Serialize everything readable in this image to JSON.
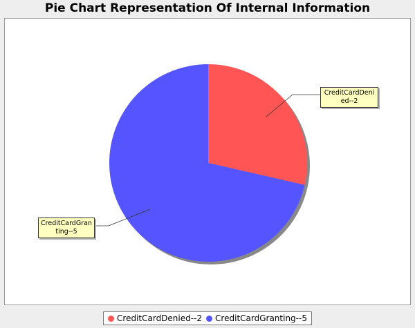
{
  "chart_data": {
    "type": "pie",
    "title": "Pie Chart Representation Of Internal Information",
    "slices": [
      {
        "label": "CreditCardDenied--2",
        "value": 2,
        "color": "#ff5555"
      },
      {
        "label": "CreditCardGranting--5",
        "value": 5,
        "color": "#5555ff"
      }
    ],
    "legend_position": "bottom"
  }
}
